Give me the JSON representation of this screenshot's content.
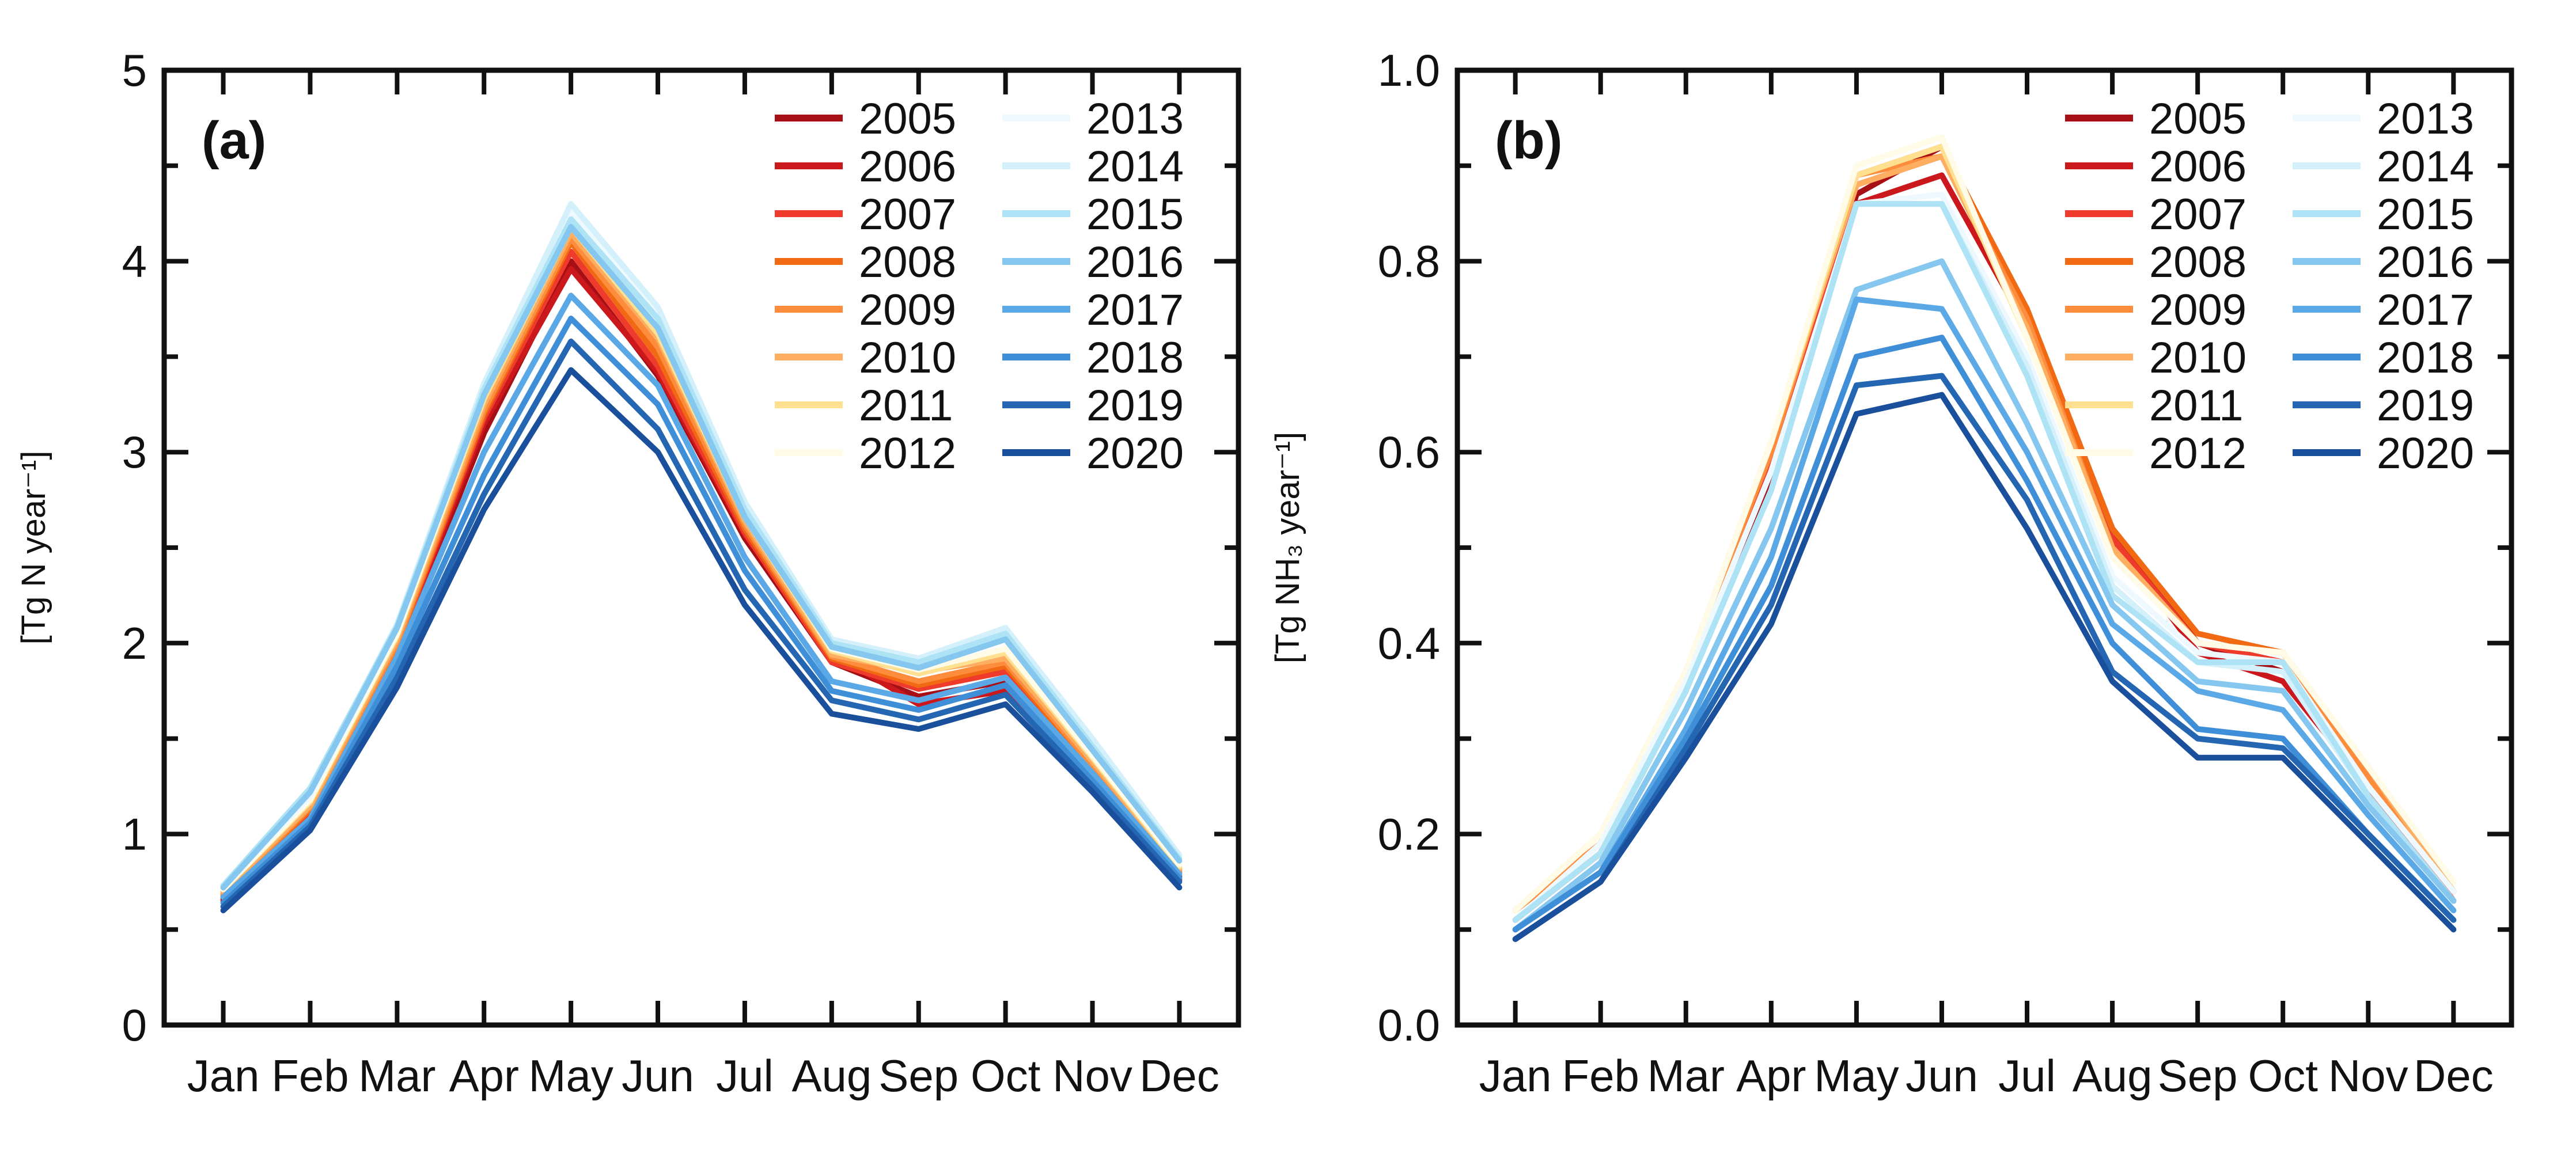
{
  "legend_colors": [
    "#a50f15",
    "#cb181d",
    "#ef3b2c",
    "#f16913",
    "#fd8d3c",
    "#fdae61",
    "#fee090",
    "#fffbe6",
    "#eef8ff",
    "#d4f0fb",
    "#aee3f5",
    "#85c7ef",
    "#5aa8e6",
    "#3f8fd8",
    "#2566b2",
    "#1a4f9c"
  ],
  "chart_data": [
    {
      "type": "line",
      "panel": "(a)",
      "xlabel": "",
      "ylabel": "[Tg N year⁻¹]",
      "ylim": [
        0,
        5
      ],
      "yticks": [
        0,
        1,
        2,
        3,
        4,
        5
      ],
      "ytick_labels": [
        "0",
        "1",
        "2",
        "3",
        "4",
        "5"
      ],
      "categories": [
        "Jan",
        "Feb",
        "Mar",
        "Apr",
        "May",
        "Jun",
        "Jul",
        "Aug",
        "Sep",
        "Oct",
        "Nov",
        "Dec"
      ],
      "legend_position": "top-right",
      "series": [
        {
          "name": "2005",
          "values": [
            0.66,
            1.1,
            1.95,
            3.1,
            4.0,
            3.4,
            2.55,
            1.9,
            1.72,
            1.8,
            1.3,
            0.78
          ]
        },
        {
          "name": "2006",
          "values": [
            0.65,
            1.1,
            1.96,
            3.15,
            3.96,
            3.42,
            2.57,
            1.95,
            1.68,
            1.75,
            1.28,
            0.76
          ]
        },
        {
          "name": "2007",
          "values": [
            0.67,
            1.12,
            1.98,
            3.18,
            4.05,
            3.45,
            2.58,
            1.9,
            1.76,
            1.85,
            1.33,
            0.79
          ]
        },
        {
          "name": "2008",
          "values": [
            0.68,
            1.13,
            1.99,
            3.2,
            4.1,
            3.5,
            2.6,
            1.92,
            1.78,
            1.88,
            1.35,
            0.8
          ]
        },
        {
          "name": "2009",
          "values": [
            0.69,
            1.14,
            2.0,
            3.22,
            4.12,
            3.55,
            2.62,
            1.93,
            1.8,
            1.9,
            1.36,
            0.81
          ]
        },
        {
          "name": "2010",
          "values": [
            0.7,
            1.15,
            2.02,
            3.25,
            4.15,
            3.6,
            2.64,
            1.94,
            1.85,
            1.92,
            1.38,
            0.82
          ]
        },
        {
          "name": "2011",
          "values": [
            0.71,
            1.17,
            2.04,
            3.28,
            4.18,
            3.62,
            2.66,
            1.96,
            1.84,
            1.95,
            1.4,
            0.83
          ]
        },
        {
          "name": "2012",
          "values": [
            0.71,
            1.18,
            2.05,
            3.3,
            4.2,
            3.65,
            2.68,
            1.97,
            1.86,
            1.97,
            1.41,
            0.84
          ]
        },
        {
          "name": "2013",
          "values": [
            0.72,
            1.2,
            2.08,
            3.34,
            4.26,
            3.72,
            2.72,
            2.0,
            1.9,
            2.06,
            1.48,
            0.88
          ]
        },
        {
          "name": "2014",
          "values": [
            0.73,
            1.22,
            2.1,
            3.36,
            4.3,
            3.76,
            2.74,
            2.02,
            1.92,
            2.08,
            1.5,
            0.89
          ]
        },
        {
          "name": "2015",
          "values": [
            0.73,
            1.24,
            2.09,
            3.33,
            4.22,
            3.7,
            2.7,
            2.0,
            1.9,
            2.05,
            1.46,
            0.87
          ]
        },
        {
          "name": "2016",
          "values": [
            0.72,
            1.22,
            2.08,
            3.3,
            4.18,
            3.65,
            2.66,
            1.98,
            1.87,
            2.02,
            1.44,
            0.86
          ]
        },
        {
          "name": "2017",
          "values": [
            0.67,
            1.08,
            1.93,
            3.0,
            3.82,
            3.35,
            2.45,
            1.8,
            1.7,
            1.82,
            1.32,
            0.79
          ]
        },
        {
          "name": "2018",
          "values": [
            0.64,
            1.06,
            1.88,
            2.88,
            3.7,
            3.25,
            2.38,
            1.75,
            1.65,
            1.78,
            1.28,
            0.77
          ]
        },
        {
          "name": "2019",
          "values": [
            0.62,
            1.04,
            1.82,
            2.78,
            3.58,
            3.12,
            2.28,
            1.7,
            1.6,
            1.73,
            1.25,
            0.75
          ]
        },
        {
          "name": "2020",
          "values": [
            0.6,
            1.02,
            1.77,
            2.7,
            3.43,
            3.0,
            2.2,
            1.63,
            1.55,
            1.68,
            1.22,
            0.72
          ]
        }
      ]
    },
    {
      "type": "line",
      "panel": "(b)",
      "xlabel": "",
      "ylabel": "[Tg NH₃ year⁻¹]",
      "ylim": [
        0,
        1.0
      ],
      "yticks": [
        0.0,
        0.2,
        0.4,
        0.6,
        0.8,
        1.0
      ],
      "ytick_labels": [
        "0.0",
        "0.2",
        "0.4",
        "0.6",
        "0.8",
        "1.0"
      ],
      "categories": [
        "Jan",
        "Feb",
        "Mar",
        "Apr",
        "May",
        "Jun",
        "Jul",
        "Aug",
        "Sep",
        "Oct",
        "Nov",
        "Dec"
      ],
      "legend_position": "top-right",
      "series": [
        {
          "name": "2005",
          "values": [
            0.11,
            0.18,
            0.35,
            0.57,
            0.87,
            0.92,
            0.74,
            0.52,
            0.4,
            0.37,
            0.25,
            0.13
          ]
        },
        {
          "name": "2006",
          "values": [
            0.11,
            0.18,
            0.36,
            0.58,
            0.86,
            0.89,
            0.73,
            0.51,
            0.39,
            0.36,
            0.25,
            0.13
          ]
        },
        {
          "name": "2007",
          "values": [
            0.11,
            0.18,
            0.36,
            0.59,
            0.88,
            0.91,
            0.74,
            0.51,
            0.4,
            0.38,
            0.26,
            0.13
          ]
        },
        {
          "name": "2008",
          "values": [
            0.12,
            0.19,
            0.37,
            0.6,
            0.89,
            0.92,
            0.75,
            0.52,
            0.41,
            0.39,
            0.26,
            0.14
          ]
        },
        {
          "name": "2009",
          "values": [
            0.12,
            0.19,
            0.37,
            0.6,
            0.89,
            0.91,
            0.74,
            0.5,
            0.4,
            0.39,
            0.26,
            0.14
          ]
        },
        {
          "name": "2010",
          "values": [
            0.12,
            0.2,
            0.37,
            0.61,
            0.88,
            0.91,
            0.73,
            0.5,
            0.4,
            0.39,
            0.27,
            0.14
          ]
        },
        {
          "name": "2011",
          "values": [
            0.12,
            0.2,
            0.37,
            0.61,
            0.89,
            0.92,
            0.72,
            0.49,
            0.4,
            0.39,
            0.27,
            0.15
          ]
        },
        {
          "name": "2012",
          "values": [
            0.12,
            0.2,
            0.37,
            0.61,
            0.9,
            0.93,
            0.72,
            0.49,
            0.4,
            0.39,
            0.27,
            0.15
          ]
        },
        {
          "name": "2013",
          "values": [
            0.11,
            0.19,
            0.36,
            0.58,
            0.86,
            0.87,
            0.7,
            0.47,
            0.39,
            0.38,
            0.25,
            0.14
          ]
        },
        {
          "name": "2014",
          "values": [
            0.11,
            0.18,
            0.35,
            0.56,
            0.86,
            0.86,
            0.69,
            0.46,
            0.38,
            0.37,
            0.24,
            0.13
          ]
        },
        {
          "name": "2015",
          "values": [
            0.11,
            0.18,
            0.35,
            0.56,
            0.86,
            0.86,
            0.68,
            0.45,
            0.38,
            0.38,
            0.24,
            0.13
          ]
        },
        {
          "name": "2016",
          "values": [
            0.1,
            0.17,
            0.33,
            0.52,
            0.77,
            0.8,
            0.63,
            0.44,
            0.36,
            0.35,
            0.23,
            0.13
          ]
        },
        {
          "name": "2017",
          "values": [
            0.1,
            0.16,
            0.31,
            0.49,
            0.76,
            0.75,
            0.6,
            0.42,
            0.35,
            0.33,
            0.22,
            0.12
          ]
        },
        {
          "name": "2018",
          "values": [
            0.1,
            0.16,
            0.3,
            0.46,
            0.7,
            0.72,
            0.57,
            0.4,
            0.31,
            0.3,
            0.2,
            0.11
          ]
        },
        {
          "name": "2019",
          "values": [
            0.09,
            0.15,
            0.29,
            0.44,
            0.67,
            0.68,
            0.55,
            0.37,
            0.3,
            0.29,
            0.2,
            0.11
          ]
        },
        {
          "name": "2020",
          "values": [
            0.09,
            0.15,
            0.28,
            0.42,
            0.64,
            0.66,
            0.52,
            0.36,
            0.28,
            0.28,
            0.19,
            0.1
          ]
        }
      ]
    }
  ]
}
